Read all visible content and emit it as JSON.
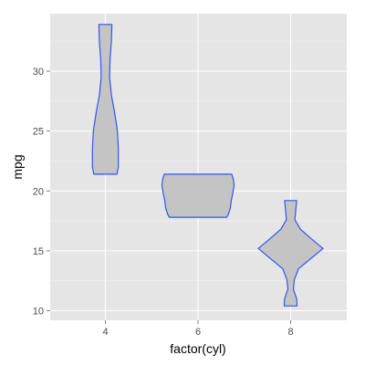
{
  "chart_data": {
    "type": "violin",
    "xlabel": "factor(cyl)",
    "ylabel": "mpg",
    "categories": [
      "4",
      "6",
      "8"
    ],
    "ylim": [
      9.2,
      34.8
    ],
    "yticks": [
      10,
      15,
      20,
      25,
      30
    ],
    "grid": true,
    "violins": [
      {
        "category": "4",
        "profile": [
          [
            21.4,
            0.25
          ],
          [
            22.0,
            0.28
          ],
          [
            23.5,
            0.28
          ],
          [
            25.0,
            0.26
          ],
          [
            26.5,
            0.2
          ],
          [
            28.0,
            0.13
          ],
          [
            29.5,
            0.09
          ],
          [
            31.0,
            0.1
          ],
          [
            32.5,
            0.13
          ],
          [
            33.9,
            0.14
          ]
        ]
      },
      {
        "category": "6",
        "profile": [
          [
            17.8,
            0.62
          ],
          [
            18.1,
            0.66
          ],
          [
            18.6,
            0.7
          ],
          [
            19.2,
            0.72
          ],
          [
            19.8,
            0.75
          ],
          [
            20.5,
            0.78
          ],
          [
            21.0,
            0.76
          ],
          [
            21.4,
            0.73
          ]
        ]
      },
      {
        "category": "8",
        "profile": [
          [
            10.4,
            0.14
          ],
          [
            11.0,
            0.13
          ],
          [
            11.8,
            0.06
          ],
          [
            12.6,
            0.08
          ],
          [
            13.5,
            0.17
          ],
          [
            14.3,
            0.42
          ],
          [
            15.2,
            0.7
          ],
          [
            16.0,
            0.45
          ],
          [
            16.8,
            0.21
          ],
          [
            17.6,
            0.09
          ],
          [
            18.4,
            0.11
          ],
          [
            19.2,
            0.13
          ]
        ]
      }
    ],
    "colors": {
      "panel_background": "#e5e5e5",
      "grid_major": "#ffffff",
      "grid_minor": "#f0f0f0",
      "violin_fill": "#c4c4c4",
      "violin_outline": "#3355ee",
      "tick_label": "#4d4d4d",
      "axis_title": "#000000"
    }
  }
}
